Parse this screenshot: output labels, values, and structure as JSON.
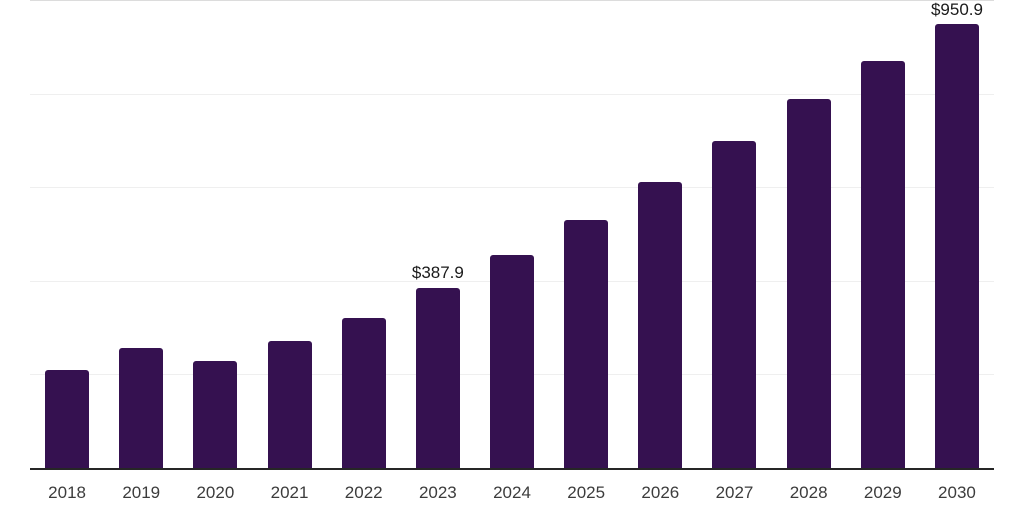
{
  "chart_data": {
    "type": "bar",
    "title": "",
    "xlabel": "",
    "ylabel": "",
    "categories": [
      "2018",
      "2019",
      "2020",
      "2021",
      "2022",
      "2023",
      "2024",
      "2025",
      "2026",
      "2027",
      "2028",
      "2029",
      "2030"
    ],
    "values": [
      211.7,
      259.0,
      231.4,
      273.0,
      323.2,
      387.9,
      457.6,
      531.6,
      612.7,
      700.3,
      791.6,
      871.3,
      950.9
    ],
    "data_labels": {
      "2023": "$387.9",
      "2030": "$950.9"
    },
    "ylim": [
      0,
      1000
    ],
    "gridline_step": 200,
    "legend": "none",
    "y_tick_labels_visible": false,
    "grid": "horizontal",
    "colors": {
      "bar": "#351150",
      "background": "#ffffff",
      "axis_line": "#262626",
      "gridline": "#efefef",
      "top_gridline": "#dcdcdc",
      "x_tick_label": "#3c3c3c",
      "data_label": "#1a1a1a"
    }
  }
}
